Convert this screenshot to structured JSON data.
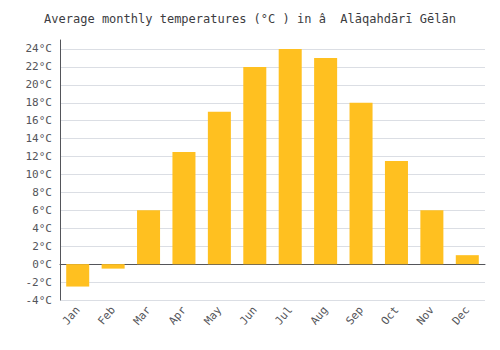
{
  "chart_data": {
    "type": "bar",
    "title": "Average monthly temperatures (°C ) in â  Alāqahdārī Gēlān",
    "categories": [
      "Jan",
      "Feb",
      "Mar",
      "Apr",
      "May",
      "Jun",
      "Jul",
      "Aug",
      "Sep",
      "Oct",
      "Nov",
      "Dec"
    ],
    "values": [
      -2.5,
      -0.5,
      6.0,
      12.5,
      17.0,
      22.0,
      24.0,
      23.0,
      18.0,
      11.5,
      6.0,
      1.0
    ],
    "color": "#FFC020",
    "ylim": [
      -4,
      25
    ],
    "yticks": [
      {
        "value": -4,
        "label": "-4°C"
      },
      {
        "value": -2,
        "label": "-2°C"
      },
      {
        "value": 0,
        "label": "0°C"
      },
      {
        "value": 2,
        "label": "2°C"
      },
      {
        "value": 4,
        "label": "4°C"
      },
      {
        "value": 6,
        "label": "6°C"
      },
      {
        "value": 8,
        "label": "8°C"
      },
      {
        "value": 10,
        "label": "10°C"
      },
      {
        "value": 12,
        "label": "12°C"
      },
      {
        "value": 14,
        "label": "14°C"
      },
      {
        "value": 16,
        "label": "16°C"
      },
      {
        "value": 18,
        "label": "18°C"
      },
      {
        "value": 20,
        "label": "20°C"
      },
      {
        "value": 22,
        "label": "22°C"
      },
      {
        "value": 24,
        "label": "24°C"
      }
    ],
    "grid": true
  }
}
